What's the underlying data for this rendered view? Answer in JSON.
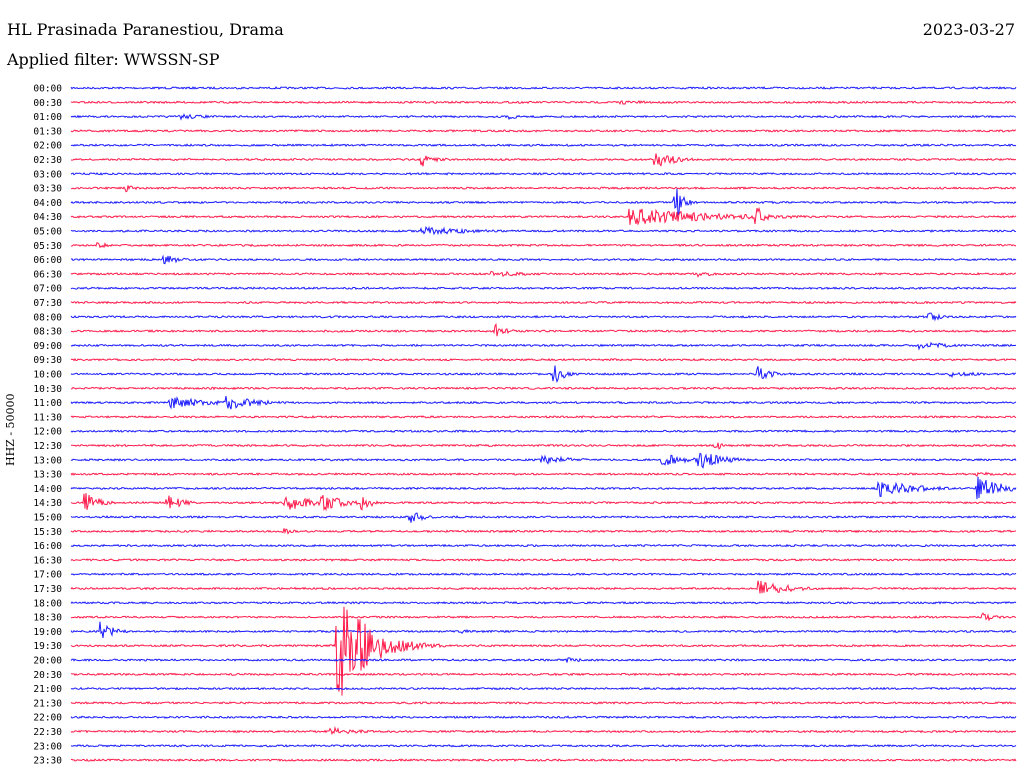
{
  "header": {
    "station": "HL Prasinada Paranestiou, Drama",
    "date": "2023-03-27",
    "filter_label": "Applied filter:",
    "filter_value": "WWSSN-SP"
  },
  "axis_label": "HHZ - 50000",
  "colors": {
    "even_rows": "#1a1aff",
    "odd_rows": "#ff1a4a"
  },
  "chart_data": {
    "type": "line",
    "title": "HL Prasinada Paranestiou, Drama",
    "ylabel": "HHZ - 50000",
    "rows": [
      "00:00",
      "00:30",
      "01:00",
      "01:30",
      "02:00",
      "02:30",
      "03:00",
      "03:30",
      "04:00",
      "04:30",
      "05:00",
      "05:30",
      "06:00",
      "06:30",
      "07:00",
      "07:30",
      "08:00",
      "08:30",
      "09:00",
      "09:30",
      "10:00",
      "10:30",
      "11:00",
      "11:30",
      "12:00",
      "12:30",
      "13:00",
      "13:30",
      "14:00",
      "14:30",
      "15:00",
      "15:30",
      "16:00",
      "16:30",
      "17:00",
      "17:30",
      "18:00",
      "18:30",
      "19:00",
      "19:30",
      "20:00",
      "20:30",
      "21:00",
      "21:30",
      "22:00",
      "22:30",
      "23:00",
      "23:30"
    ],
    "row_duration_minutes": 30,
    "events": [
      {
        "row": 1,
        "minute": 17.5,
        "amplitude": 2,
        "duration": 3
      },
      {
        "row": 2,
        "minute": 3.5,
        "amplitude": 3,
        "duration": 2
      },
      {
        "row": 2,
        "minute": 14.0,
        "amplitude": 3,
        "duration": 0.5
      },
      {
        "row": 5,
        "minute": 11.2,
        "amplitude": 7,
        "duration": 1
      },
      {
        "row": 5,
        "minute": 18.6,
        "amplitude": 8,
        "duration": 1.5
      },
      {
        "row": 7,
        "minute": 1.8,
        "amplitude": 4,
        "duration": 0.5
      },
      {
        "row": 8,
        "minute": 19.2,
        "amplitude": 18,
        "duration": 0.5
      },
      {
        "row": 9,
        "minute": 17.8,
        "amplitude": 9,
        "duration": 6
      },
      {
        "row": 9,
        "minute": 21.8,
        "amplitude": 12,
        "duration": 0.5
      },
      {
        "row": 10,
        "minute": 11.2,
        "amplitude": 4,
        "duration": 4
      },
      {
        "row": 11,
        "minute": 0.9,
        "amplitude": 4,
        "duration": 0.5
      },
      {
        "row": 12,
        "minute": 3.0,
        "amplitude": 5,
        "duration": 1
      },
      {
        "row": 13,
        "minute": 13.4,
        "amplitude": 3,
        "duration": 3
      },
      {
        "row": 13,
        "minute": 20.0,
        "amplitude": 3,
        "duration": 1
      },
      {
        "row": 16,
        "minute": 27.2,
        "amplitude": 7,
        "duration": 0.7
      },
      {
        "row": 17,
        "minute": 13.5,
        "amplitude": 7,
        "duration": 0.7
      },
      {
        "row": 18,
        "minute": 27.0,
        "amplitude": 4,
        "duration": 2
      },
      {
        "row": 20,
        "minute": 15.4,
        "amplitude": 9,
        "duration": 0.7
      },
      {
        "row": 20,
        "minute": 21.8,
        "amplitude": 10,
        "duration": 0.8
      },
      {
        "row": 20,
        "minute": 28.0,
        "amplitude": 3,
        "duration": 2
      },
      {
        "row": 22,
        "minute": 3.2,
        "amplitude": 6,
        "duration": 3
      },
      {
        "row": 22,
        "minute": 5.0,
        "amplitude": 8,
        "duration": 2
      },
      {
        "row": 25,
        "minute": 20.5,
        "amplitude": 6,
        "duration": 0.3
      },
      {
        "row": 26,
        "minute": 15.0,
        "amplitude": 5,
        "duration": 2
      },
      {
        "row": 26,
        "minute": 18.8,
        "amplitude": 6,
        "duration": 2
      },
      {
        "row": 26,
        "minute": 20.0,
        "amplitude": 10,
        "duration": 1.5
      },
      {
        "row": 27,
        "minute": 28.8,
        "amplitude": 3,
        "duration": 1
      },
      {
        "row": 28,
        "minute": 25.6,
        "amplitude": 9,
        "duration": 2.5
      },
      {
        "row": 28,
        "minute": 28.8,
        "amplitude": 14,
        "duration": 1.5
      },
      {
        "row": 29,
        "minute": 0.5,
        "amplitude": 10,
        "duration": 1
      },
      {
        "row": 29,
        "minute": 3.1,
        "amplitude": 8,
        "duration": 1
      },
      {
        "row": 29,
        "minute": 6.8,
        "amplitude": 9,
        "duration": 2
      },
      {
        "row": 29,
        "minute": 8.0,
        "amplitude": 9,
        "duration": 1.5
      },
      {
        "row": 29,
        "minute": 9.3,
        "amplitude": 8,
        "duration": 0.6
      },
      {
        "row": 30,
        "minute": 10.8,
        "amplitude": 6,
        "duration": 1
      },
      {
        "row": 31,
        "minute": 6.8,
        "amplitude": 3,
        "duration": 1
      },
      {
        "row": 35,
        "minute": 21.9,
        "amplitude": 8,
        "duration": 2
      },
      {
        "row": 37,
        "minute": 29.0,
        "amplitude": 4,
        "duration": 1
      },
      {
        "row": 38,
        "minute": 1.0,
        "amplitude": 10,
        "duration": 0.8
      },
      {
        "row": 38,
        "minute": 12.5,
        "amplitude": 3,
        "duration": 0.3
      },
      {
        "row": 39,
        "minute": 8.5,
        "amplitude": 56,
        "duration": 2
      },
      {
        "row": 40,
        "minute": 15.8,
        "amplitude": 3,
        "duration": 1
      },
      {
        "row": 45,
        "minute": 8.3,
        "amplitude": 4,
        "duration": 2
      }
    ]
  }
}
